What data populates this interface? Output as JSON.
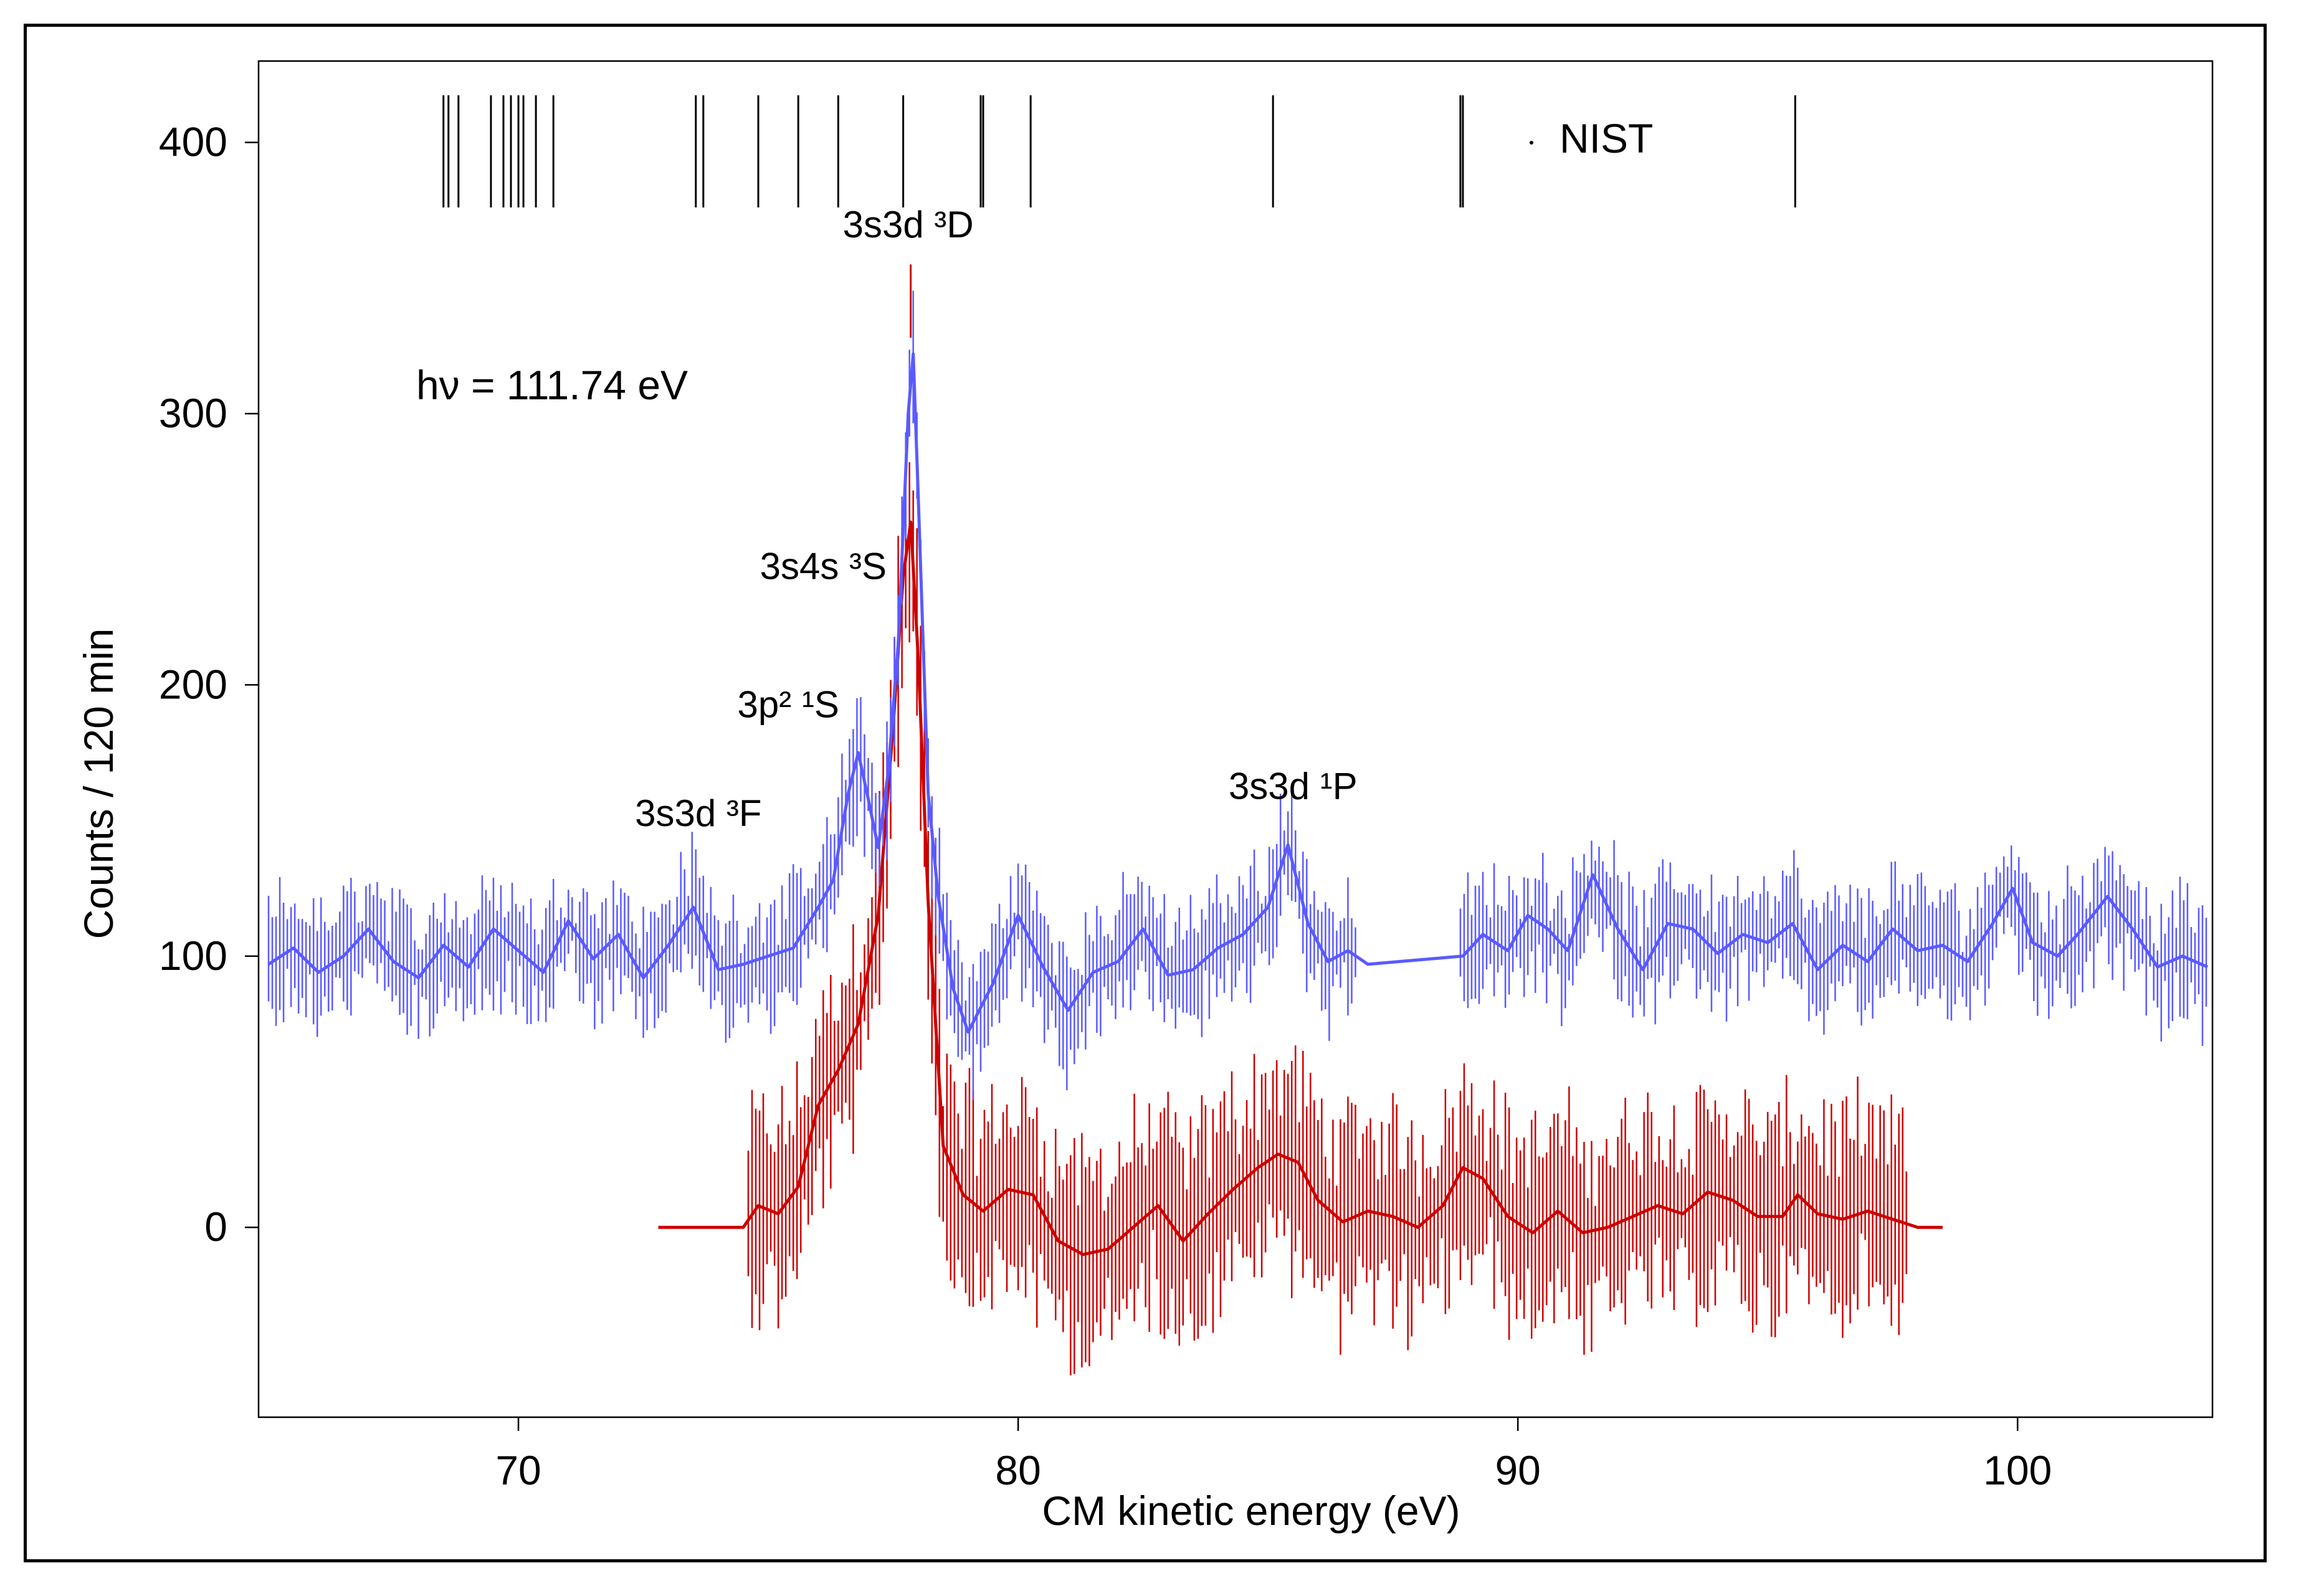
{
  "chart_data": {
    "type": "line",
    "xlabel": "CM kinetic energy (eV)",
    "ylabel": "Counts / 120 min",
    "xlim": [
      64.8,
      103.9
    ],
    "ylim": [
      -70,
      430
    ],
    "xticks": [
      70,
      80,
      90,
      100
    ],
    "yticks": [
      0,
      100,
      200,
      300,
      400
    ],
    "photon_energy_label": "hν = 111.74 eV",
    "colors": {
      "blue": "#5a5aff",
      "red": "#cc0000",
      "axis": "#000000"
    },
    "nist": {
      "label": "NIST",
      "lines": [
        68.5,
        68.6,
        68.8,
        69.45,
        69.7,
        69.85,
        70.0,
        70.1,
        70.35,
        70.7,
        73.55,
        73.7,
        74.8,
        75.6,
        76.4,
        77.7,
        79.25,
        79.3,
        80.25,
        85.1,
        88.85,
        88.9,
        95.55
      ]
    },
    "annotations": [
      {
        "text": "3s3d ³D",
        "x": 77.8,
        "y": 365,
        "marker": {
          "x": 77.85,
          "from": 355,
          "to": 328
        }
      },
      {
        "text": "3s4s ³S",
        "x": 76.1,
        "y": 239
      },
      {
        "text": "3p² ¹S",
        "x": 75.4,
        "y": 188
      },
      {
        "text": "3s3d ³F",
        "x": 73.6,
        "y": 148
      },
      {
        "text": "3s3d ¹P",
        "x": 85.5,
        "y": 158
      }
    ],
    "series": [
      {
        "name": "blue",
        "x": [
          65.0,
          65.5,
          66.0,
          66.5,
          67.0,
          67.5,
          68.0,
          68.5,
          69.0,
          69.5,
          70.0,
          70.5,
          71.0,
          71.5,
          72.0,
          72.5,
          73.0,
          73.5,
          74.0,
          74.5,
          75.0,
          75.5,
          76.0,
          76.3,
          76.6,
          76.8,
          77.0,
          77.2,
          77.4,
          77.6,
          77.8,
          77.9,
          78.0,
          78.2,
          78.4,
          78.7,
          79.0,
          79.5,
          80.0,
          80.5,
          81.0,
          81.5,
          82.0,
          82.5,
          83.0,
          83.5,
          84.0,
          84.5,
          85.0,
          85.4,
          85.8,
          86.2,
          86.6,
          87.0,
          88.9,
          89.3,
          89.8,
          90.2,
          90.6,
          91.0,
          91.5,
          92.0,
          92.5,
          93.0,
          93.5,
          94.0,
          94.5,
          95.0,
          95.5,
          96.0,
          96.5,
          97.0,
          97.5,
          98.0,
          98.5,
          99.0,
          99.5,
          99.9,
          100.3,
          100.8,
          101.2,
          101.8,
          102.3,
          102.8,
          103.3,
          103.8
        ],
        "y": [
          97,
          103,
          94,
          100,
          110,
          98,
          92,
          104,
          96,
          110,
          102,
          94,
          113,
          99,
          108,
          92,
          104,
          118,
          95,
          97,
          100,
          103,
          118,
          128,
          160,
          175,
          158,
          140,
          168,
          215,
          300,
          322,
          270,
          160,
          122,
          88,
          72,
          90,
          115,
          96,
          80,
          94,
          98,
          110,
          93,
          95,
          103,
          108,
          118,
          141,
          112,
          98,
          102,
          97,
          100,
          108,
          102,
          115,
          110,
          102,
          130,
          110,
          95,
          112,
          110,
          101,
          108,
          105,
          112,
          95,
          104,
          98,
          110,
          102,
          104,
          98,
          112,
          125,
          105,
          100,
          108,
          122,
          110,
          96,
          100,
          96
        ]
      },
      {
        "name": "red",
        "x": [
          72.8,
          74.5,
          74.8,
          75.2,
          75.6,
          76.0,
          76.4,
          76.8,
          77.2,
          77.5,
          77.7,
          77.85,
          78.0,
          78.2,
          78.5,
          78.9,
          79.3,
          79.8,
          80.3,
          80.8,
          81.3,
          81.8,
          82.3,
          82.8,
          83.3,
          83.8,
          84.3,
          84.8,
          85.2,
          85.6,
          86.0,
          86.5,
          87.0,
          87.5,
          88.0,
          88.5,
          88.9,
          89.3,
          89.8,
          90.3,
          90.8,
          91.3,
          91.8,
          92.3,
          92.8,
          93.3,
          93.8,
          94.3,
          94.8,
          95.3,
          95.6,
          96.0,
          96.5,
          97.0,
          97.5,
          98.0,
          98.5
        ],
        "y": [
          0,
          0,
          8,
          5,
          15,
          45,
          58,
          75,
          115,
          185,
          240,
          260,
          210,
          120,
          30,
          12,
          6,
          14,
          12,
          -5,
          -10,
          -8,
          0,
          8,
          -5,
          5,
          14,
          22,
          27,
          24,
          10,
          2,
          6,
          4,
          0,
          8,
          22,
          18,
          4,
          -2,
          6,
          -2,
          0,
          4,
          8,
          5,
          13,
          10,
          4,
          4,
          12,
          5,
          3,
          6,
          3,
          0,
          0
        ]
      }
    ]
  }
}
